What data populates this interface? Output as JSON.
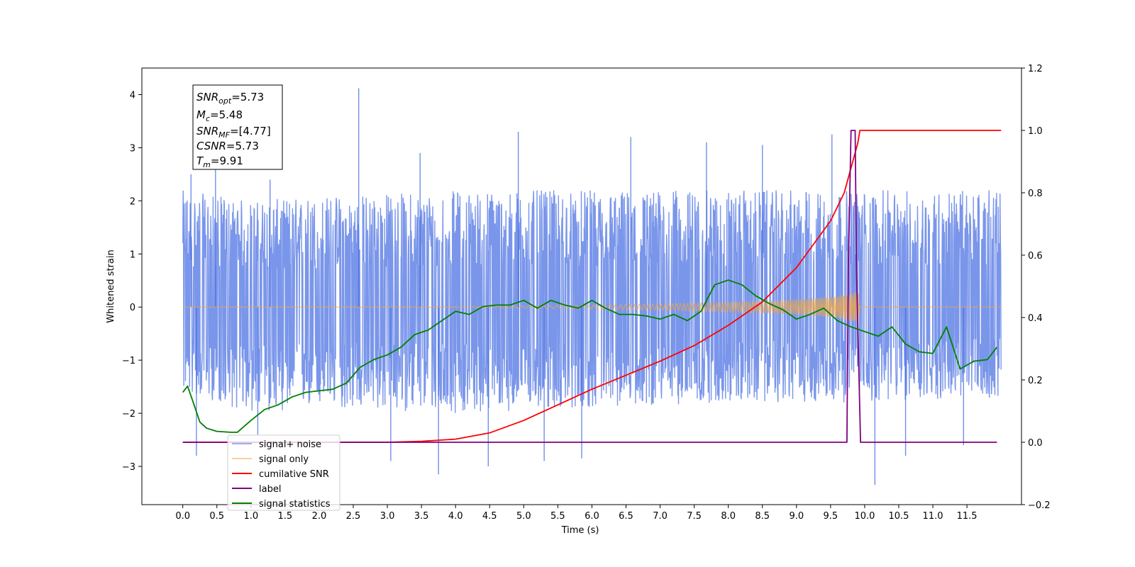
{
  "chart_data": {
    "type": "line",
    "title": "",
    "xlabel": "Time (s)",
    "ylabel": "Whitened strain",
    "y2label": "",
    "xlim": [
      -0.6,
      12.3
    ],
    "ylim": [
      -3.72,
      4.5
    ],
    "y2lim": [
      -0.2,
      1.2
    ],
    "x_ticks": [
      0.0,
      0.5,
      1.0,
      1.5,
      2.0,
      2.5,
      3.0,
      3.5,
      4.0,
      4.5,
      5.0,
      5.5,
      6.0,
      6.5,
      7.0,
      7.5,
      8.0,
      8.5,
      9.0,
      9.5,
      10.0,
      10.5,
      11.0,
      11.5
    ],
    "x_tick_labels": [
      "0.0",
      "0.5",
      "1.0",
      "1.5",
      "2.0",
      "2.5",
      "3.0",
      "3.5",
      "4.0",
      "4.5",
      "5.0",
      "5.5",
      "6.0",
      "6.5",
      "7.0",
      "7.5",
      "8.0",
      "8.5",
      "9.0",
      "9.5",
      "10.0",
      "10.5",
      "11.0",
      "11.5"
    ],
    "y_ticks": [
      -3,
      -2,
      -1,
      0,
      1,
      2,
      3,
      4
    ],
    "y_tick_labels": [
      "−3",
      "−2",
      "−1",
      "0",
      "1",
      "2",
      "3",
      "4"
    ],
    "y2_ticks": [
      -0.2,
      0.0,
      0.2,
      0.4,
      0.6,
      0.8,
      1.0,
      1.2
    ],
    "y2_tick_labels": [
      "−0.2",
      "0.0",
      "0.2",
      "0.4",
      "0.6",
      "0.8",
      "1.0",
      "1.2"
    ],
    "grid": false,
    "legend_position": "lower-left",
    "info_box": {
      "position": "top-left",
      "lines": [
        {
          "sym": "SNR",
          "sub": "opt",
          "value": "=5.73"
        },
        {
          "sym": "M",
          "sub": "c",
          "value": "=5.48"
        },
        {
          "sym": "SNR",
          "sub": "MF",
          "value": "=[4.77]"
        },
        {
          "sym": "CSNR",
          "sub": "",
          "value": "=5.73"
        },
        {
          "sym": "T",
          "sub": "m",
          "value": "=9.91"
        }
      ]
    },
    "series": [
      {
        "name": "signal+ noise",
        "color": "#4169e1",
        "axis": "left",
        "style": "noise-band",
        "x_range": [
          0.0,
          12.0
        ],
        "envelope_hi": [
          [
            0.0,
            2.2
          ],
          [
            1.0,
            2.0
          ],
          [
            2.0,
            2.1
          ],
          [
            4.0,
            2.2
          ],
          [
            6.0,
            2.2
          ],
          [
            8.0,
            2.2
          ],
          [
            10.0,
            2.2
          ],
          [
            12.0,
            2.2
          ]
        ],
        "envelope_lo": [
          [
            0.0,
            -1.6
          ],
          [
            1.0,
            -2.0
          ],
          [
            2.0,
            -1.9
          ],
          [
            4.0,
            -2.0
          ],
          [
            6.0,
            -1.9
          ],
          [
            8.0,
            -1.8
          ],
          [
            10.0,
            -1.8
          ],
          [
            12.0,
            -1.7
          ]
        ],
        "spikes": [
          [
            0.12,
            2.5
          ],
          [
            0.48,
            2.9
          ],
          [
            1.28,
            2.4
          ],
          [
            2.58,
            4.12
          ],
          [
            3.48,
            2.9
          ],
          [
            4.92,
            3.3
          ],
          [
            6.57,
            3.2
          ],
          [
            7.68,
            3.1
          ],
          [
            8.5,
            3.05
          ],
          [
            9.52,
            3.25
          ],
          [
            0.2,
            -2.8
          ],
          [
            1.1,
            -2.4
          ],
          [
            3.05,
            -2.9
          ],
          [
            3.75,
            -3.15
          ],
          [
            4.48,
            -3.0
          ],
          [
            5.3,
            -2.9
          ],
          [
            5.85,
            -2.85
          ],
          [
            10.15,
            -3.35
          ],
          [
            10.6,
            -2.8
          ],
          [
            11.45,
            -2.6
          ]
        ]
      },
      {
        "name": "signal only",
        "color": "#f4a742",
        "axis": "left",
        "style": "chirp",
        "x": [
          0.0,
          4.0,
          5.0,
          6.0,
          7.0,
          8.0,
          8.5,
          9.0,
          9.3,
          9.6,
          9.8,
          9.91,
          9.93,
          12.0
        ],
        "amplitude": [
          0.0,
          0.005,
          0.02,
          0.04,
          0.06,
          0.09,
          0.11,
          0.14,
          0.17,
          0.21,
          0.26,
          0.3,
          0.0,
          0.0
        ]
      },
      {
        "name": "cumilative SNR",
        "color": "#ff0000",
        "axis": "right",
        "x": [
          0.0,
          3.0,
          3.5,
          4.0,
          4.5,
          5.0,
          5.5,
          6.0,
          6.5,
          7.0,
          7.5,
          8.0,
          8.5,
          9.0,
          9.5,
          9.7,
          9.8,
          9.9,
          9.93,
          12.0
        ],
        "values": [
          0.0,
          0.0,
          0.003,
          0.01,
          0.03,
          0.07,
          0.12,
          0.17,
          0.215,
          0.26,
          0.31,
          0.375,
          0.45,
          0.56,
          0.71,
          0.8,
          0.88,
          0.96,
          1.0,
          1.0
        ]
      },
      {
        "name": "label",
        "color": "#800080",
        "axis": "right",
        "x": [
          0.0,
          9.74,
          9.76,
          9.8,
          9.86,
          9.88,
          9.94,
          9.96,
          11.94
        ],
        "values": [
          0.0,
          0.0,
          0.55,
          1.0,
          1.0,
          0.55,
          0.0,
          0.0,
          0.0
        ]
      },
      {
        "name": "signal statistics",
        "color": "#008000",
        "axis": "right",
        "x": [
          0.0,
          0.07,
          0.15,
          0.25,
          0.35,
          0.5,
          0.7,
          0.8,
          1.0,
          1.2,
          1.4,
          1.6,
          1.8,
          2.0,
          2.2,
          2.4,
          2.6,
          2.8,
          3.0,
          3.2,
          3.4,
          3.6,
          3.8,
          4.0,
          4.2,
          4.4,
          4.6,
          4.8,
          5.0,
          5.2,
          5.4,
          5.6,
          5.8,
          6.0,
          6.2,
          6.4,
          6.6,
          6.8,
          7.0,
          7.2,
          7.4,
          7.6,
          7.8,
          8.0,
          8.2,
          8.4,
          8.6,
          8.8,
          9.0,
          9.2,
          9.4,
          9.6,
          9.8,
          10.0,
          10.2,
          10.4,
          10.6,
          10.8,
          11.0,
          11.2,
          11.4,
          11.6,
          11.8,
          11.94
        ],
        "values": [
          0.16,
          0.18,
          0.13,
          0.065,
          0.045,
          0.035,
          0.032,
          0.032,
          0.07,
          0.105,
          0.12,
          0.145,
          0.16,
          0.165,
          0.17,
          0.19,
          0.24,
          0.265,
          0.28,
          0.305,
          0.345,
          0.36,
          0.39,
          0.42,
          0.41,
          0.435,
          0.44,
          0.44,
          0.455,
          0.43,
          0.455,
          0.44,
          0.43,
          0.455,
          0.43,
          0.41,
          0.41,
          0.405,
          0.395,
          0.41,
          0.39,
          0.42,
          0.505,
          0.52,
          0.505,
          0.47,
          0.445,
          0.425,
          0.395,
          0.41,
          0.43,
          0.39,
          0.37,
          0.355,
          0.34,
          0.37,
          0.315,
          0.29,
          0.285,
          0.37,
          0.235,
          0.26,
          0.265,
          0.305
        ]
      }
    ]
  }
}
